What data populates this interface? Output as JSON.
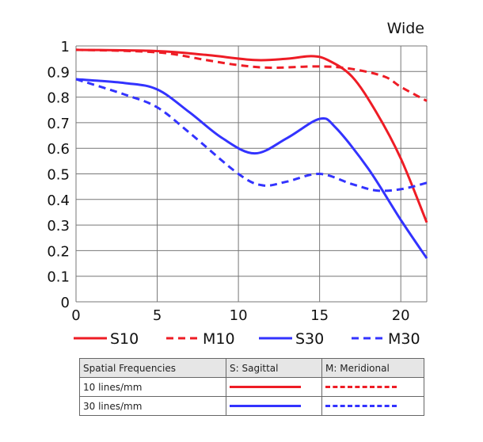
{
  "chart_data": {
    "type": "line",
    "title": "Wide",
    "xlabel": "",
    "ylabel": "",
    "xlim": [
      0,
      21.6
    ],
    "ylim": [
      0,
      1
    ],
    "xticks": [
      0,
      5,
      10,
      15,
      20
    ],
    "yticks": [
      0,
      0.1,
      0.2,
      0.3,
      0.4,
      0.5,
      0.6,
      0.7,
      0.8,
      0.9,
      1
    ],
    "ytick_labels": [
      "0",
      "0.1",
      "0.2",
      "0.3",
      "0.4",
      "0.5",
      "0.6",
      "0.7",
      "0.8",
      "0.9",
      "1"
    ],
    "grid": true,
    "legend_position": "bottom",
    "series": [
      {
        "name": "S10",
        "color": "#ee1c25",
        "dashed": false,
        "x": [
          0,
          5,
          8,
          11,
          13,
          14.5,
          15.5,
          17,
          18.5,
          20,
          21.6
        ],
        "y": [
          0.985,
          0.98,
          0.965,
          0.945,
          0.95,
          0.96,
          0.945,
          0.88,
          0.74,
          0.56,
          0.31
        ]
      },
      {
        "name": "M10",
        "color": "#ee1c25",
        "dashed": true,
        "x": [
          0,
          5,
          8,
          10,
          12,
          15,
          17,
          19,
          20,
          21.6
        ],
        "y": [
          0.985,
          0.975,
          0.945,
          0.925,
          0.915,
          0.92,
          0.91,
          0.88,
          0.84,
          0.785
        ]
      },
      {
        "name": "S30",
        "color": "#3333ff",
        "dashed": false,
        "x": [
          0,
          3,
          5,
          7,
          9,
          11,
          13,
          15,
          16,
          18,
          20,
          21.6
        ],
        "y": [
          0.87,
          0.855,
          0.83,
          0.74,
          0.64,
          0.58,
          0.64,
          0.715,
          0.68,
          0.52,
          0.32,
          0.17
        ]
      },
      {
        "name": "M30",
        "color": "#3333ff",
        "dashed": true,
        "x": [
          0,
          3,
          5,
          7,
          10,
          11.5,
          13,
          15,
          17,
          18.5,
          20,
          21.6
        ],
        "y": [
          0.87,
          0.81,
          0.76,
          0.66,
          0.5,
          0.455,
          0.47,
          0.5,
          0.46,
          0.435,
          0.44,
          0.465
        ]
      }
    ]
  },
  "table": {
    "headers": [
      "Spatial Frequencies",
      "S: Sagittal",
      "M: Meridional"
    ],
    "rows": [
      "10 lines/mm",
      "30 lines/mm"
    ]
  }
}
